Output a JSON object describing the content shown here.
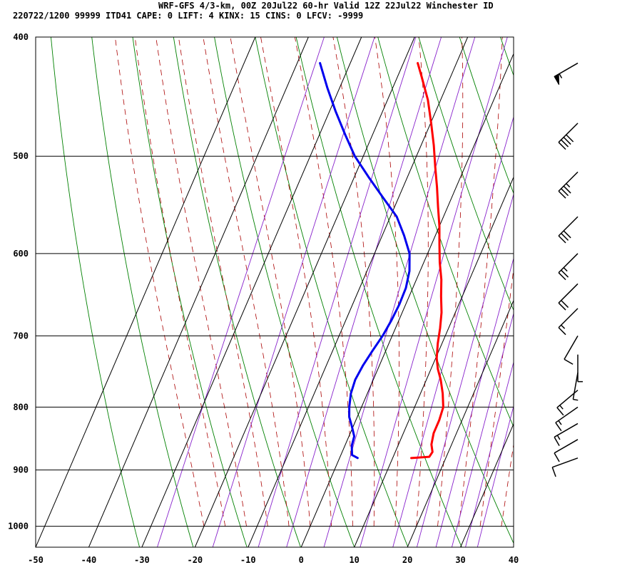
{
  "header": {
    "line1": "WRF-GFS 4/3-km, 00Z 20Jul22 60-hr Valid 12Z 22Jul22 Winchester ID",
    "line2": "220722/1200 99999  ITD41   CAPE:     0 LIFT:     4 KINX:    15 CINS:     0 LFCV: -9999"
  },
  "chart_data": {
    "type": "skew-t",
    "xlim": [
      -50,
      40
    ],
    "ylim_hpa": [
      1040,
      400
    ],
    "x_ticks": [
      -50,
      -40,
      -30,
      -20,
      -10,
      0,
      10,
      20,
      30,
      40
    ],
    "x_tick_labels": [
      "-50",
      "-40",
      "-30",
      "-20",
      "-10",
      "0",
      "10",
      "20",
      "30",
      "40"
    ],
    "y_ticks": [
      400,
      500,
      600,
      700,
      800,
      900,
      1000
    ],
    "y_tick_labels": [
      "400",
      "500",
      "600",
      "700",
      "800",
      "900",
      "1000"
    ],
    "series": [
      {
        "color": "#ff0000",
        "points": [
          [
            880,
            13.5
          ],
          [
            878,
            16.8
          ],
          [
            870,
            17.0
          ],
          [
            858,
            16.2
          ],
          [
            840,
            15.7
          ],
          [
            820,
            15.7
          ],
          [
            800,
            15.4
          ],
          [
            780,
            14.2
          ],
          [
            760,
            12.7
          ],
          [
            745,
            11.3
          ],
          [
            730,
            10.2
          ],
          [
            710,
            9.2
          ],
          [
            690,
            8.4
          ],
          [
            670,
            7.4
          ],
          [
            650,
            6.0
          ],
          [
            630,
            4.7
          ],
          [
            610,
            3.0
          ],
          [
            590,
            1.5
          ],
          [
            570,
            0.0
          ],
          [
            550,
            -1.8
          ],
          [
            530,
            -3.6
          ],
          [
            510,
            -5.6
          ],
          [
            490,
            -7.6
          ],
          [
            470,
            -9.9
          ],
          [
            450,
            -12.4
          ],
          [
            430,
            -15.6
          ],
          [
            420,
            -17.3
          ]
        ]
      },
      {
        "color": "#0000ee",
        "points": [
          [
            880,
            3.4
          ],
          [
            875,
            2.1
          ],
          [
            860,
            1.3
          ],
          [
            845,
            1.0
          ],
          [
            830,
            -0.2
          ],
          [
            815,
            -1.5
          ],
          [
            800,
            -2.3
          ],
          [
            780,
            -3.1
          ],
          [
            760,
            -3.4
          ],
          [
            740,
            -3.1
          ],
          [
            720,
            -2.5
          ],
          [
            700,
            -1.8
          ],
          [
            680,
            -1.4
          ],
          [
            660,
            -1.2
          ],
          [
            640,
            -1.3
          ],
          [
            620,
            -2.0
          ],
          [
            600,
            -3.4
          ],
          [
            580,
            -5.9
          ],
          [
            560,
            -8.8
          ],
          [
            540,
            -13.0
          ],
          [
            520,
            -17.3
          ],
          [
            500,
            -21.6
          ],
          [
            480,
            -25.2
          ],
          [
            460,
            -28.8
          ],
          [
            440,
            -32.3
          ],
          [
            420,
            -35.7
          ]
        ]
      }
    ],
    "background": {
      "dry_adiabat_color": "#008000",
      "moist_adiabat_color": "#aa0000",
      "mixing_ratio_color": "#8822cc",
      "grid_color": "#000000"
    },
    "wind_barbs": [
      {
        "p": 880,
        "dir": 250,
        "speed_kt": 10
      },
      {
        "p": 850,
        "dir": 240,
        "speed_kt": 10
      },
      {
        "p": 825,
        "dir": 240,
        "speed_kt": 15
      },
      {
        "p": 800,
        "dir": 235,
        "speed_kt": 15
      },
      {
        "p": 775,
        "dir": 230,
        "speed_kt": 15
      },
      {
        "p": 750,
        "dir": 190,
        "speed_kt": 5
      },
      {
        "p": 725,
        "dir": 180,
        "speed_kt": 5
      },
      {
        "p": 700,
        "dir": 210,
        "speed_kt": 10
      },
      {
        "p": 665,
        "dir": 225,
        "speed_kt": 15
      },
      {
        "p": 635,
        "dir": 225,
        "speed_kt": 20
      },
      {
        "p": 600,
        "dir": 225,
        "speed_kt": 25
      },
      {
        "p": 560,
        "dir": 225,
        "speed_kt": 30
      },
      {
        "p": 515,
        "dir": 225,
        "speed_kt": 35
      },
      {
        "p": 470,
        "dir": 225,
        "speed_kt": 40
      },
      {
        "p": 420,
        "dir": 240,
        "speed_kt": 55
      }
    ]
  }
}
